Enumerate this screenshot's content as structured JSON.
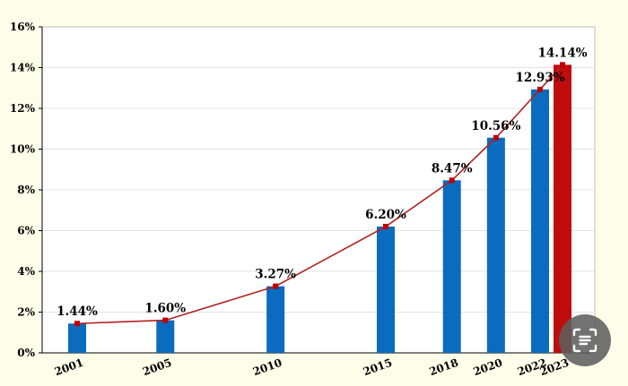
{
  "chart_data": {
    "type": "bar",
    "categories": [
      "2001",
      "2005",
      "2010",
      "2015",
      "2018",
      "2020",
      "2022",
      "2023"
    ],
    "values": [
      1.44,
      1.6,
      3.27,
      6.2,
      8.47,
      10.56,
      12.93,
      14.14
    ],
    "data_labels": [
      "1.44%",
      "1.60%",
      "3.27%",
      "6.20%",
      "8.47%",
      "10.56%",
      "12.93%",
      "14.14%"
    ],
    "overlay": "line",
    "ylim": [
      0,
      16
    ],
    "yticks": [
      0,
      2,
      4,
      6,
      8,
      10,
      12,
      14,
      16
    ],
    "ytick_labels": [
      "0%",
      "2%",
      "4%",
      "6%",
      "8%",
      "10%",
      "12%",
      "14%",
      "16%"
    ],
    "highlight_category": "2023",
    "grid": true,
    "title": "",
    "xlabel": "",
    "ylabel": ""
  },
  "colors": {
    "bar": "#0b6bbf",
    "highlight_bar": "#bf0d0d",
    "line": "#b22222",
    "marker": "#c00000",
    "grid": "#e3e3e3",
    "plot_bg": "#ffffff",
    "page_bg": "#fdfde9"
  },
  "overlay_icon": "lens-scan-icon"
}
